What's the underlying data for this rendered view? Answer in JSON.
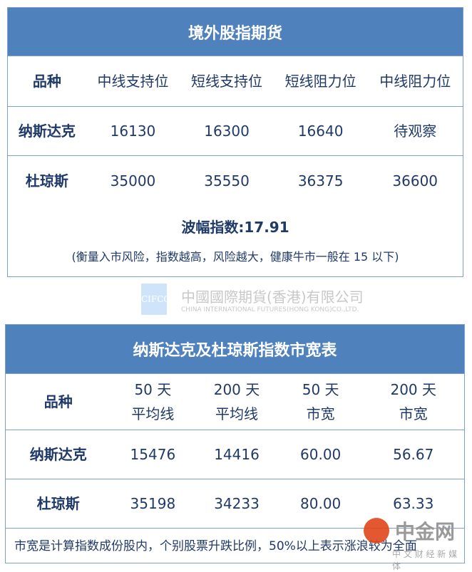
{
  "table1": {
    "title": "境外股指期货",
    "headers": [
      "品种",
      "中线支持位",
      "短线支持位",
      "短线阻力位",
      "中线阻力位"
    ],
    "rows": [
      [
        "纳斯达克",
        "16130",
        "16300",
        "16640",
        "待观察"
      ],
      [
        "杜琼斯",
        "35000",
        "35550",
        "36375",
        "36600"
      ]
    ],
    "volatility": "波幅指数:17.91",
    "note": "(衡量入市风险，指数越高，风险越大，健康牛市一般在 15 以下)"
  },
  "logo": {
    "mark": "CIFCO",
    "cn": "中國國際期貨(香港)有限公司",
    "en": "CHINA INTERNATIONAL FUTURES(HONG KONG)CO.,LTD."
  },
  "table2": {
    "title": "纳斯达克及杜琼斯指数市宽表",
    "headers": [
      [
        "品种",
        ""
      ],
      [
        "50 天",
        "平均线"
      ],
      [
        "200 天",
        "平均线"
      ],
      [
        "50 天",
        "市宽"
      ],
      [
        "200 天",
        "市宽"
      ]
    ],
    "rows": [
      [
        "纳斯达克",
        "15476",
        "14416",
        "60.00",
        "56.67"
      ],
      [
        "杜琼斯",
        "35198",
        "34233",
        "80.00",
        "63.33"
      ]
    ],
    "note": "市宽是计算指数成份股内，个别股票升跌比例，50%以上表示涨浪较为全面"
  },
  "watermark": {
    "name": "中金网",
    "sub": "中 文 财 经 新 媒 体"
  }
}
